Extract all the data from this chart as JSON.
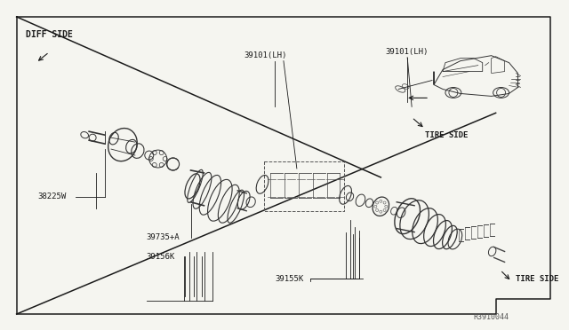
{
  "bg_color": "#f5f5f0",
  "line_color": "#1a1a1a",
  "fig_width": 6.4,
  "fig_height": 3.72,
  "dpi": 100,
  "labels": {
    "diff_side": "DIFF SIDE",
    "tire_side_top": "TIRE SIDE",
    "tire_side_bottom": "TIRE SIDE",
    "part_38225w": "38225W",
    "part_39735a": "39735+A",
    "part_39156k": "39156K",
    "part_39101lh_1": "39101(LH)",
    "part_39101lh_2": "39101(LH)",
    "part_39155k": "39155K",
    "ref_code": "R3910044"
  }
}
